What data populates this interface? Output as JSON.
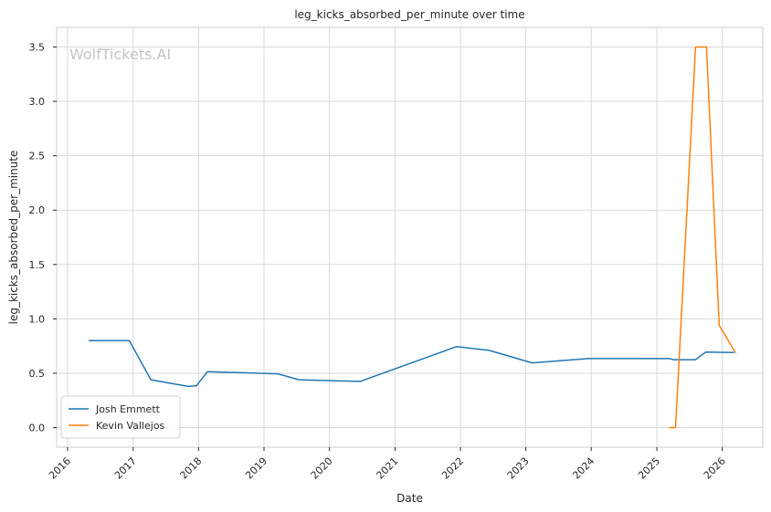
{
  "chart_data": {
    "type": "line",
    "title": "leg_kicks_absorbed_per_minute over time",
    "xlabel": "Date",
    "ylabel": "leg_kicks_absorbed_per_minute",
    "watermark": "WolfTickets.AI",
    "x_ticks": [
      "2016",
      "2017",
      "2018",
      "2019",
      "2020",
      "2021",
      "2022",
      "2023",
      "2024",
      "2025",
      "2026"
    ],
    "y_ticks": [
      "0.0",
      "0.5",
      "1.0",
      "1.5",
      "2.0",
      "2.5",
      "3.0",
      "3.5"
    ],
    "xlim": [
      "2015-11-01",
      "2026-08-15"
    ],
    "ylim": [
      -0.18,
      3.68
    ],
    "grid": true,
    "legend_position": "lower-left",
    "series": [
      {
        "name": "Josh Emmett",
        "color": "#1f77b4",
        "points": [
          {
            "x": "2016-05-01",
            "y": 0.8
          },
          {
            "x": "2016-12-10",
            "y": 0.8
          },
          {
            "x": "2017-04-10",
            "y": 0.44
          },
          {
            "x": "2017-11-01",
            "y": 0.38
          },
          {
            "x": "2017-12-20",
            "y": 0.385
          },
          {
            "x": "2018-02-20",
            "y": 0.515
          },
          {
            "x": "2019-03-20",
            "y": 0.495
          },
          {
            "x": "2019-07-15",
            "y": 0.44
          },
          {
            "x": "2020-06-20",
            "y": 0.425
          },
          {
            "x": "2021-12-10",
            "y": 0.745
          },
          {
            "x": "2022-06-10",
            "y": 0.71
          },
          {
            "x": "2023-02-05",
            "y": 0.595
          },
          {
            "x": "2023-12-15",
            "y": 0.635
          },
          {
            "x": "2025-03-15",
            "y": 0.635
          },
          {
            "x": "2025-04-01",
            "y": 0.625
          },
          {
            "x": "2025-08-05",
            "y": 0.625
          },
          {
            "x": "2025-10-01",
            "y": 0.695
          },
          {
            "x": "2026-03-05",
            "y": 0.69
          }
        ]
      },
      {
        "name": "Kevin Vallejos",
        "color": "#ff7f0e",
        "points": [
          {
            "x": "2025-03-15",
            "y": 0.0
          },
          {
            "x": "2025-04-15",
            "y": 0.0
          },
          {
            "x": "2025-08-05",
            "y": 3.5
          },
          {
            "x": "2025-10-05",
            "y": 3.5
          },
          {
            "x": "2025-12-15",
            "y": 0.94
          },
          {
            "x": "2026-03-15",
            "y": 0.69
          }
        ]
      }
    ]
  }
}
